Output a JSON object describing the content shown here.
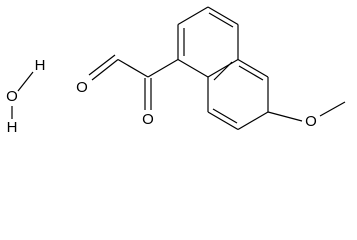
{
  "water": {
    "atoms": [
      "H",
      "O",
      "H"
    ]
  },
  "molecule": {
    "atoms": [
      "O",
      "O",
      "O"
    ]
  }
}
